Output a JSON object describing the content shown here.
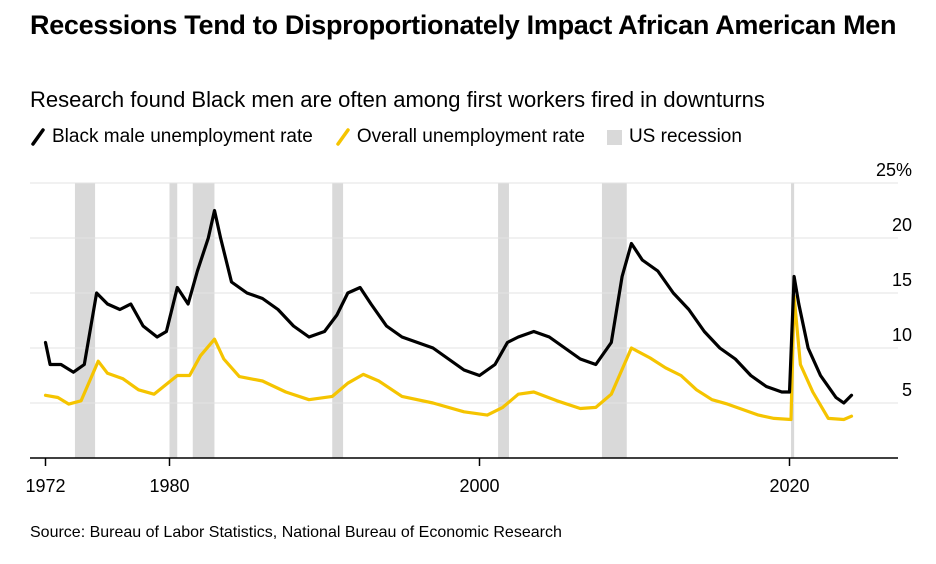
{
  "title": "Recessions Tend to Disproportionately Impact African American Men",
  "subtitle": "Research found Black men are often among first workers fired in downturns",
  "source": "Source: Bureau of Labor Statistics, National Bureau of Economic Research",
  "colors": {
    "black_series": "#000000",
    "overall_series": "#f5c400",
    "recession": "#d9d9d9",
    "grid": "#e3e3e3",
    "axis": "#000000"
  },
  "chart_data": {
    "type": "line",
    "title": "Recessions Tend to Disproportionately Impact African American Men",
    "subtitle": "Research found Black men are often among first workers fired in downturns",
    "xlabel": "",
    "ylabel": "",
    "xlim": [
      1971,
      2027
    ],
    "ylim": [
      0,
      25
    ],
    "y_ticks": [
      {
        "value": 5,
        "label": "5"
      },
      {
        "value": 10,
        "label": "10"
      },
      {
        "value": 15,
        "label": "15"
      },
      {
        "value": 20,
        "label": "20"
      },
      {
        "value": 25,
        "label": "25%"
      }
    ],
    "x_ticks": [
      {
        "value": 1972,
        "label": "1972"
      },
      {
        "value": 1980,
        "label": "1980"
      },
      {
        "value": 2000,
        "label": "2000"
      },
      {
        "value": 2020,
        "label": "2020"
      }
    ],
    "grid": true,
    "legend_position": "top-left",
    "legend": [
      {
        "label": "Black male unemployment rate",
        "kind": "line",
        "color": "#000000"
      },
      {
        "label": "Overall unemployment rate",
        "kind": "line",
        "color": "#f5c400"
      },
      {
        "label": "US recession",
        "kind": "box",
        "color": "#d9d9d9"
      }
    ],
    "recessions": [
      [
        1973.9,
        1975.2
      ],
      [
        1980.0,
        1980.5
      ],
      [
        1981.5,
        1982.9
      ],
      [
        1990.5,
        1991.2
      ],
      [
        2001.2,
        2001.9
      ],
      [
        2007.9,
        2009.5
      ],
      [
        2020.1,
        2020.3
      ]
    ],
    "series": [
      {
        "name": "Black male unemployment rate",
        "color": "#000000",
        "x": [
          1972,
          1972.3,
          1973,
          1973.8,
          1974.5,
          1975.3,
          1976,
          1976.8,
          1977.5,
          1978.3,
          1979.2,
          1979.8,
          1980.5,
          1981.2,
          1981.8,
          1982.5,
          1982.9,
          1983.3,
          1984,
          1985,
          1986,
          1987,
          1988,
          1989,
          1990,
          1990.8,
          1991.5,
          1992.3,
          1993,
          1994,
          1995,
          1996,
          1997,
          1998,
          1999,
          2000,
          2001,
          2001.8,
          2002.5,
          2003.5,
          2004.5,
          2005.5,
          2006.5,
          2007.5,
          2008.5,
          2009.2,
          2009.8,
          2010.5,
          2011.5,
          2012.5,
          2013.5,
          2014.5,
          2015.5,
          2016.5,
          2017.5,
          2018.5,
          2019.5,
          2020.0,
          2020.3,
          2020.6,
          2021.2,
          2022,
          2023,
          2023.5,
          2024
        ],
        "values": [
          10.5,
          8.5,
          8.5,
          7.8,
          8.5,
          15.0,
          14.0,
          13.5,
          14.0,
          12.0,
          11.0,
          11.5,
          15.5,
          14.0,
          17.0,
          20.0,
          22.5,
          20.0,
          16.0,
          15.0,
          14.5,
          13.5,
          12.0,
          11.0,
          11.5,
          13.0,
          15.0,
          15.5,
          14.0,
          12.0,
          11.0,
          10.5,
          10.0,
          9.0,
          8.0,
          7.5,
          8.5,
          10.5,
          11.0,
          11.5,
          11.0,
          10.0,
          9.0,
          8.5,
          10.5,
          16.5,
          19.5,
          18.0,
          17.0,
          15.0,
          13.5,
          11.5,
          10.0,
          9.0,
          7.5,
          6.5,
          6.0,
          6.0,
          16.5,
          14.0,
          10.0,
          7.5,
          5.5,
          5.0,
          5.7
        ]
      },
      {
        "name": "Overall unemployment rate",
        "color": "#f5c400",
        "x": [
          1972,
          1972.8,
          1973.5,
          1974.3,
          1975.4,
          1976,
          1977,
          1978,
          1979,
          1980.5,
          1981.3,
          1982,
          1982.9,
          1983.5,
          1984.5,
          1986,
          1987.5,
          1989,
          1990.5,
          1991.5,
          1992.5,
          1993.5,
          1995,
          1997,
          1999,
          2000.5,
          2001.5,
          2002.5,
          2003.5,
          2005,
          2006.5,
          2007.5,
          2008.5,
          2009.8,
          2011,
          2012,
          2013,
          2014,
          2015,
          2016,
          2017,
          2018,
          2019,
          2020.1,
          2020.3,
          2020.7,
          2021.5,
          2022.5,
          2023.5,
          2024
        ],
        "values": [
          5.7,
          5.5,
          4.9,
          5.2,
          8.8,
          7.7,
          7.2,
          6.2,
          5.8,
          7.5,
          7.5,
          9.3,
          10.8,
          9.0,
          7.4,
          7.0,
          6.0,
          5.3,
          5.6,
          6.8,
          7.6,
          7.0,
          5.6,
          5.0,
          4.2,
          3.9,
          4.6,
          5.8,
          6.0,
          5.2,
          4.5,
          4.6,
          5.8,
          10.0,
          9.1,
          8.2,
          7.5,
          6.2,
          5.3,
          4.9,
          4.4,
          3.9,
          3.6,
          3.5,
          14.7,
          8.5,
          6.0,
          3.6,
          3.5,
          3.8
        ]
      }
    ]
  }
}
